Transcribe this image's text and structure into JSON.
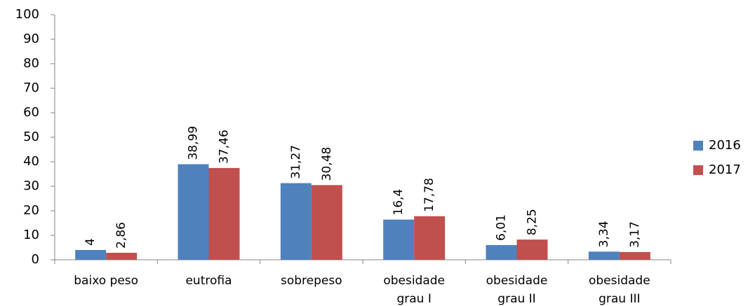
{
  "chart_data": {
    "type": "bar",
    "categories": [
      [
        "baixo peso"
      ],
      [
        "eutrofia"
      ],
      [
        "sobrepeso"
      ],
      [
        "obesidade",
        "grau I"
      ],
      [
        "obesidade",
        "grau II"
      ],
      [
        "obesidade",
        "grau III"
      ]
    ],
    "series": [
      {
        "name": "2016",
        "color": "#4f81bd",
        "values": [
          4,
          38.99,
          31.27,
          16.4,
          6.01,
          3.34
        ],
        "value_labels": [
          "4",
          "38,99",
          "31,27",
          "16,4",
          "6,01",
          "3,34"
        ]
      },
      {
        "name": "2017",
        "color": "#c0504d",
        "values": [
          2.86,
          37.46,
          30.48,
          17.78,
          8.25,
          3.17
        ],
        "value_labels": [
          "2,86",
          "37,46",
          "30,48",
          "17,78",
          "8,25",
          "3,17"
        ]
      }
    ],
    "ylim": [
      0,
      100
    ],
    "yticks": [
      0,
      10,
      20,
      30,
      40,
      50,
      60,
      70,
      80,
      90,
      100
    ],
    "grid": false,
    "legend": "right"
  }
}
